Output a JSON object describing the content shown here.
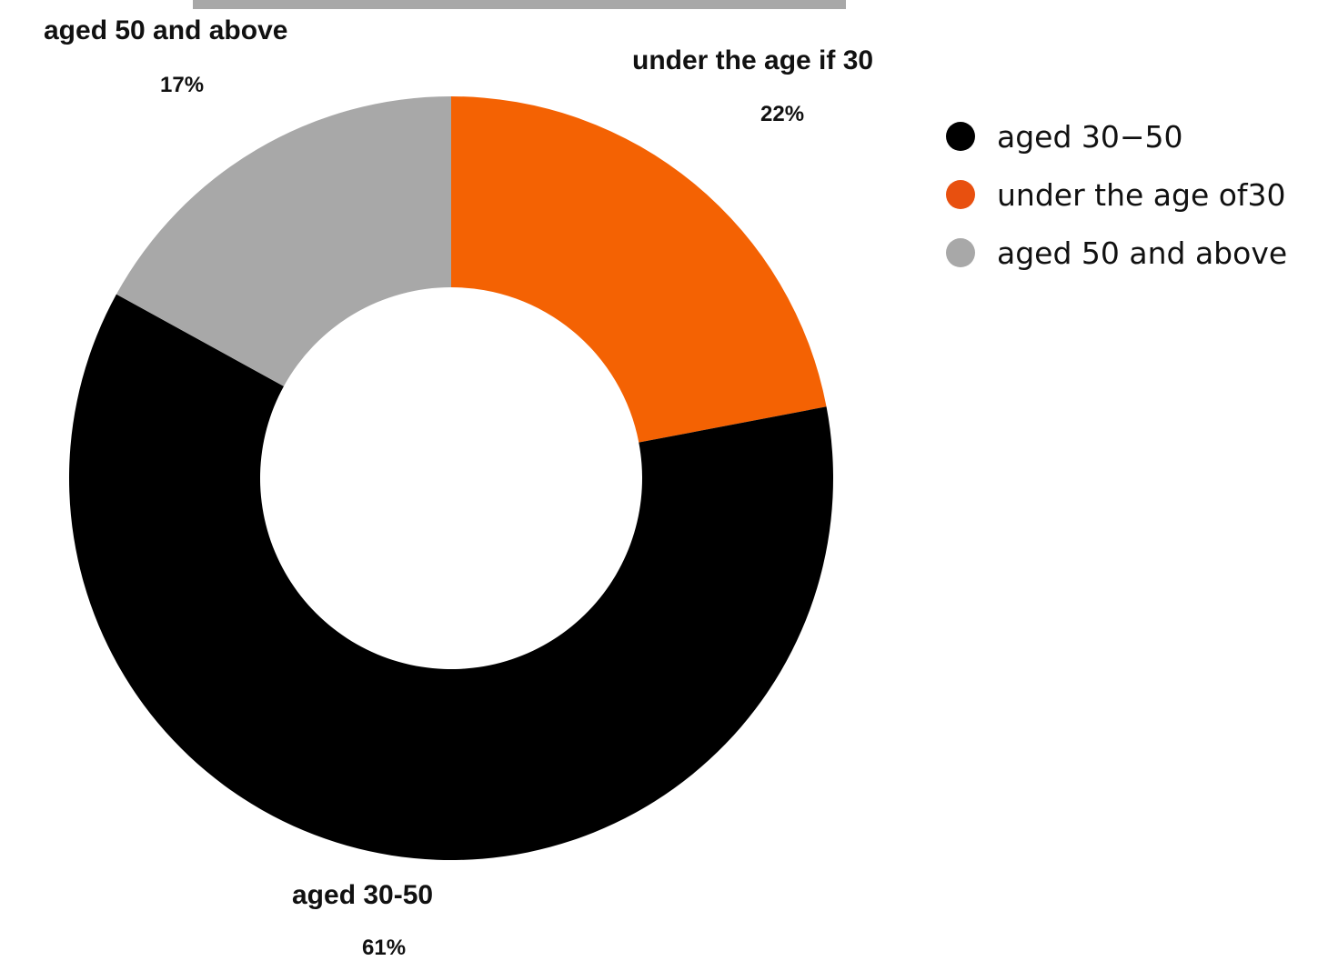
{
  "chart_data": {
    "type": "pie",
    "variant": "donut",
    "categories": [
      "under the age if 30",
      "aged 30-50",
      "aged 50 and above"
    ],
    "values": [
      22,
      61,
      17
    ],
    "value_labels": [
      "22%",
      "61%",
      "17%"
    ],
    "colors": [
      "#f46203",
      "#000000",
      "#a8a8a8"
    ],
    "title": "",
    "start_angle": "12 o'clock",
    "direction": "clockwise",
    "legend": {
      "placement": "right",
      "entries": [
        {
          "label": "aged 30−50",
          "color": "#000000"
        },
        {
          "label": "under the age of30",
          "color": "#e8500f"
        },
        {
          "label": "aged 50 and above",
          "color": "#a8a8a8"
        }
      ]
    }
  }
}
